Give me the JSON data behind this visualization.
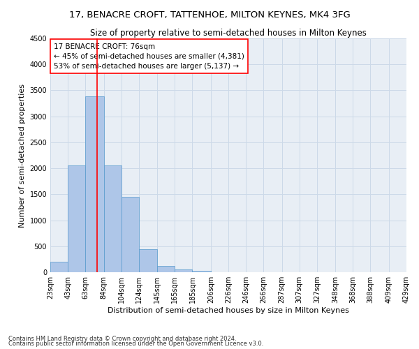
{
  "title": "17, BENACRE CROFT, TATTENHOE, MILTON KEYNES, MK4 3FG",
  "subtitle": "Size of property relative to semi-detached houses in Milton Keynes",
  "xlabel": "Distribution of semi-detached houses by size in Milton Keynes",
  "ylabel": "Number of semi-detached properties",
  "footnote1": "Contains HM Land Registry data © Crown copyright and database right 2024.",
  "footnote2": "Contains public sector information licensed under the Open Government Licence v3.0.",
  "bar_left_edges": [
    23,
    43,
    63,
    84,
    104,
    124,
    145,
    165,
    185,
    206,
    226,
    246,
    266,
    287,
    307,
    327,
    348,
    368,
    388,
    409
  ],
  "bar_widths": [
    20,
    20,
    21,
    20,
    20,
    21,
    20,
    20,
    21,
    20,
    20,
    20,
    21,
    20,
    20,
    21,
    20,
    20,
    21,
    20
  ],
  "bar_heights": [
    200,
    2050,
    3380,
    2050,
    1450,
    450,
    120,
    60,
    30,
    0,
    0,
    0,
    0,
    0,
    0,
    0,
    0,
    0,
    0,
    0
  ],
  "bar_color": "#aec6e8",
  "bar_edge_color": "#5599cc",
  "property_line_x": 76,
  "property_line_color": "red",
  "annotation_line1": "17 BENACRE CROFT: 76sqm",
  "annotation_line2": "← 45% of semi-detached houses are smaller (4,381)",
  "annotation_line3": "53% of semi-detached houses are larger (5,137) →",
  "ylim": [
    0,
    4500
  ],
  "yticks": [
    0,
    500,
    1000,
    1500,
    2000,
    2500,
    3000,
    3500,
    4000,
    4500
  ],
  "x_tick_labels": [
    "23sqm",
    "43sqm",
    "63sqm",
    "84sqm",
    "104sqm",
    "124sqm",
    "145sqm",
    "165sqm",
    "185sqm",
    "206sqm",
    "226sqm",
    "246sqm",
    "266sqm",
    "287sqm",
    "307sqm",
    "327sqm",
    "348sqm",
    "368sqm",
    "388sqm",
    "409sqm",
    "429sqm"
  ],
  "x_tick_positions": [
    23,
    43,
    63,
    84,
    104,
    124,
    145,
    165,
    185,
    206,
    226,
    246,
    266,
    287,
    307,
    327,
    348,
    368,
    388,
    409,
    429
  ],
  "grid_color": "#ccd9e8",
  "bg_color": "#e8eef5",
  "title_fontsize": 9.5,
  "subtitle_fontsize": 8.5,
  "axis_label_fontsize": 8,
  "tick_fontsize": 7,
  "annotation_fontsize": 7.5,
  "footnote_fontsize": 6
}
